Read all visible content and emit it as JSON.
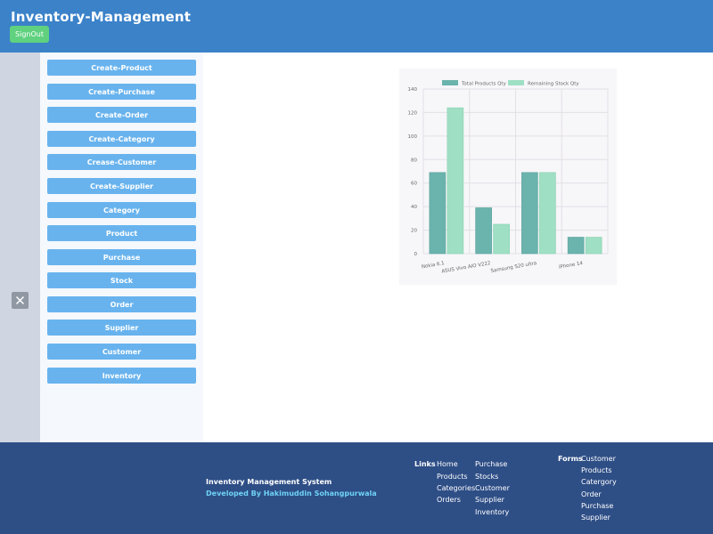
{
  "header": {
    "title": "Inventory-Management",
    "signout_label": "SignOut"
  },
  "left_rail": {
    "close_icon": "close-icon"
  },
  "sidebar": {
    "items": [
      {
        "label": "Create-Product"
      },
      {
        "label": "Create-Purchase"
      },
      {
        "label": "Create-Order"
      },
      {
        "label": "Create-Category"
      },
      {
        "label": "Crease-Customer"
      },
      {
        "label": "Create-Supplier"
      },
      {
        "label": "Category"
      },
      {
        "label": "Product"
      },
      {
        "label": "Purchase"
      },
      {
        "label": "Stock"
      },
      {
        "label": "Order"
      },
      {
        "label": "Supplier"
      },
      {
        "label": "Customer"
      },
      {
        "label": "Inventory"
      }
    ]
  },
  "chart_data": {
    "type": "bar",
    "categories": [
      "Nokia 6.1",
      "ASUS Vivo AIO V222",
      "Samsung S20 ultra",
      "iPhone 14"
    ],
    "series": [
      {
        "name": "Total Products Qty",
        "values": [
          69,
          39,
          69,
          14
        ],
        "color": "#6bb3ad"
      },
      {
        "name": "Remaining Stock Qty",
        "values": [
          124,
          25,
          69,
          14
        ],
        "color": "#9fdfc3"
      }
    ],
    "ylim": [
      0,
      140
    ],
    "yticks": [
      0,
      20,
      40,
      60,
      80,
      100,
      120,
      140
    ],
    "grid": true,
    "legend": "top"
  },
  "footer": {
    "title": "Inventory Management System",
    "developer": "Developed By Hakimuddin Sohangpurwala",
    "links_heading": "Links",
    "links_col1": [
      "Home",
      "Products",
      "Categories",
      "Orders"
    ],
    "links_col2": [
      "Purchase",
      "Stocks",
      "Customer",
      "Supplier",
      "Inventory"
    ],
    "forms_heading": "Forms",
    "forms": [
      "Customer",
      "Products",
      "Catergory",
      "Order",
      "Purchase",
      "Supplier"
    ]
  },
  "colors": {
    "header": "#3b82c9",
    "signout": "#5fd17f",
    "sidebar_button": "#68b3ee",
    "footer": "#2e4e86",
    "developer_text": "#6fd3f5"
  }
}
